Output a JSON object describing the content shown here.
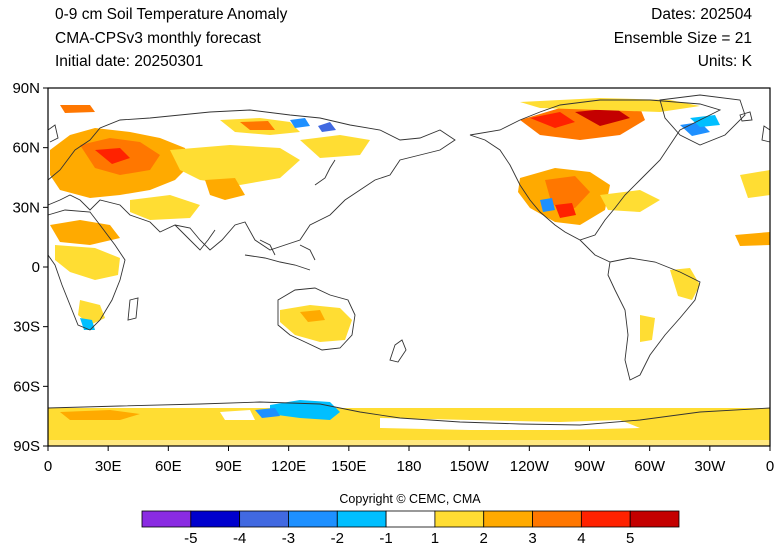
{
  "header": {
    "title": "0-9 cm Soil Temperature Anomaly",
    "model": "CMA-CPSv3 monthly forecast",
    "initial_date": "Initial date: 20250301",
    "dates": "Dates: 202504",
    "ensemble": "Ensemble Size = 21",
    "units": "Units: K"
  },
  "map": {
    "lon_labels": [
      "0",
      "30E",
      "60E",
      "90E",
      "120E",
      "150E",
      "180",
      "150W",
      "120W",
      "90W",
      "60W",
      "30W",
      "0"
    ],
    "lat_labels": [
      "90N",
      "60N",
      "30N",
      "0",
      "30S",
      "60S",
      "90S"
    ],
    "projection": "cylindrical equidistant, centered 180",
    "colors": {
      "land_outline": "#333333",
      "ocean": "#ffffff"
    }
  },
  "colorbar": {
    "colors": [
      "#8a2be2",
      "#0000cd",
      "#4169e1",
      "#1e90ff",
      "#00bfff",
      "#ffffff",
      "#ffdd33",
      "#ffaa00",
      "#ff7700",
      "#ff2200",
      "#c40000"
    ],
    "labels": [
      "-5",
      "-4",
      "-3",
      "-2",
      "-1",
      "1",
      "2",
      "3",
      "4",
      "5"
    ]
  },
  "copyright": "Copyright © CEMC, CMA"
}
